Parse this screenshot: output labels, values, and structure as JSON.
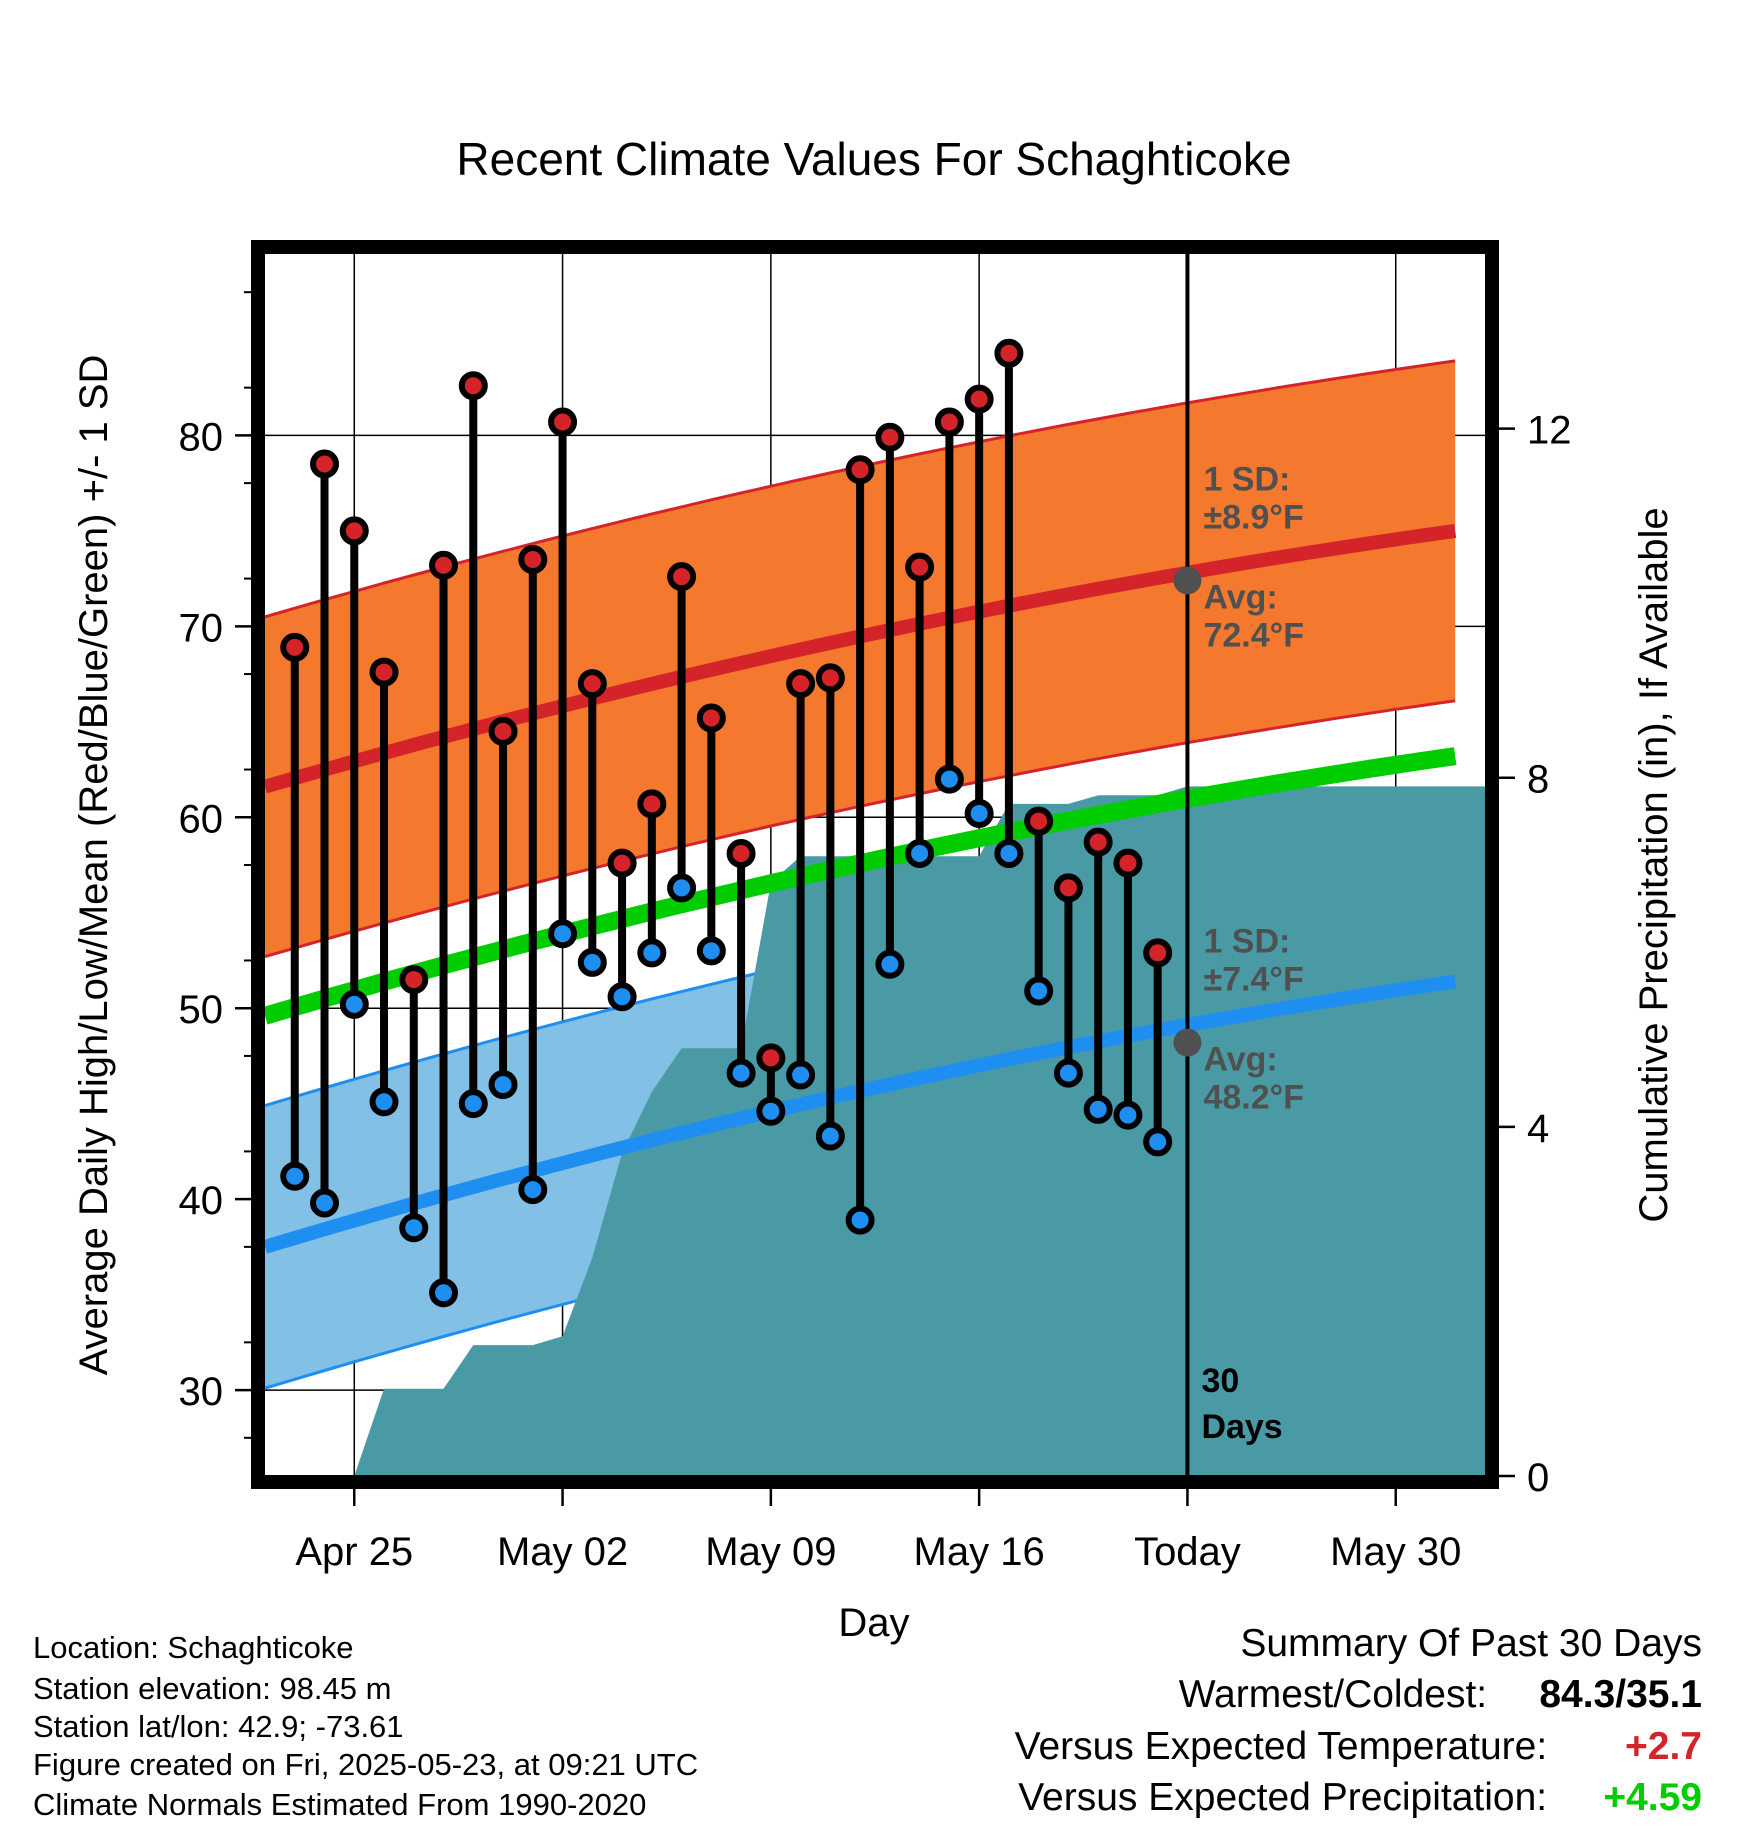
{
  "chart_data": {
    "type": "line",
    "title": "Recent Climate Values For Schaghticoke",
    "xlabel": "Day",
    "ylabel": "Average Daily High/Low/Mean (Red/Blue/Green) +/- 1 SD",
    "y2label": "Cumulative Precipitation (in), If Available",
    "x_start": "Apr 22",
    "x_end": "Jun 02",
    "xticks": [
      "Apr 25",
      "May 02",
      "May 09",
      "May 16",
      "Today",
      "May 30"
    ],
    "ylim": [
      25.5,
      89.5
    ],
    "yticks": [
      30,
      40,
      50,
      60,
      70,
      80
    ],
    "y2lim": [
      0,
      14.0
    ],
    "y2ticks": [
      0,
      4,
      8,
      12
    ],
    "grid": true,
    "today_marker": {
      "date": "May 23",
      "label_line1": "30",
      "label_line2": "Days"
    },
    "daily_temps": [
      {
        "date": "Apr 23",
        "high": 68.9,
        "low": 41.2
      },
      {
        "date": "Apr 24",
        "high": 78.5,
        "low": 39.8
      },
      {
        "date": "Apr 25",
        "high": 75.0,
        "low": 50.2
      },
      {
        "date": "Apr 26",
        "high": 67.6,
        "low": 45.1
      },
      {
        "date": "Apr 27",
        "high": 51.5,
        "low": 38.5
      },
      {
        "date": "Apr 28",
        "high": 73.2,
        "low": 35.1
      },
      {
        "date": "Apr 29",
        "high": 82.6,
        "low": 45.0
      },
      {
        "date": "Apr 30",
        "high": 64.5,
        "low": 46.0
      },
      {
        "date": "May 01",
        "high": 73.5,
        "low": 40.5
      },
      {
        "date": "May 02",
        "high": 80.7,
        "low": 53.9
      },
      {
        "date": "May 03",
        "high": 67.0,
        "low": 52.4
      },
      {
        "date": "May 04",
        "high": 57.6,
        "low": 50.6
      },
      {
        "date": "May 05",
        "high": 60.7,
        "low": 52.9
      },
      {
        "date": "May 06",
        "high": 72.6,
        "low": 56.3
      },
      {
        "date": "May 07",
        "high": 65.2,
        "low": 53.0
      },
      {
        "date": "May 08",
        "high": 58.1,
        "low": 46.6
      },
      {
        "date": "May 09",
        "high": 47.4,
        "low": 44.6
      },
      {
        "date": "May 10",
        "high": 67.0,
        "low": 46.5
      },
      {
        "date": "May 11",
        "high": 67.3,
        "low": 43.3
      },
      {
        "date": "May 12",
        "high": 78.2,
        "low": 38.9
      },
      {
        "date": "May 13",
        "high": 79.9,
        "low": 52.3
      },
      {
        "date": "May 14",
        "high": 73.1,
        "low": 58.1
      },
      {
        "date": "May 15",
        "high": 80.7,
        "low": 62.0
      },
      {
        "date": "May 16",
        "high": 81.9,
        "low": 60.2
      },
      {
        "date": "May 17",
        "high": 84.3,
        "low": 58.1
      },
      {
        "date": "May 18",
        "high": 59.8,
        "low": 50.9
      },
      {
        "date": "May 19",
        "high": 56.3,
        "low": 46.6
      },
      {
        "date": "May 20",
        "high": 58.7,
        "low": 44.7
      },
      {
        "date": "May 21",
        "high": 57.6,
        "low": 44.4
      },
      {
        "date": "May 22",
        "high": 52.9,
        "low": 43.0
      }
    ],
    "normal_high": {
      "start": 61.6,
      "end": 75.0,
      "sd": 8.9
    },
    "normal_low": {
      "start": 37.5,
      "end": 51.4,
      "sd": 7.4
    },
    "normal_mean": {
      "start": 49.6,
      "end": 63.2
    },
    "cumulative_precip": [
      {
        "date": "Apr 25",
        "value": 0.0
      },
      {
        "date": "Apr 26",
        "value": 1.0
      },
      {
        "date": "Apr 27",
        "value": 1.0
      },
      {
        "date": "Apr 28",
        "value": 1.0
      },
      {
        "date": "Apr 29",
        "value": 1.5
      },
      {
        "date": "Apr 30",
        "value": 1.5
      },
      {
        "date": "May 01",
        "value": 1.5
      },
      {
        "date": "May 02",
        "value": 1.6
      },
      {
        "date": "May 03",
        "value": 2.5
      },
      {
        "date": "May 04",
        "value": 3.7
      },
      {
        "date": "May 05",
        "value": 4.4
      },
      {
        "date": "May 06",
        "value": 4.9
      },
      {
        "date": "May 07",
        "value": 4.9
      },
      {
        "date": "May 08",
        "value": 4.9
      },
      {
        "date": "May 09",
        "value": 6.8
      },
      {
        "date": "May 10",
        "value": 7.1
      },
      {
        "date": "May 11",
        "value": 7.1
      },
      {
        "date": "May 12",
        "value": 7.1
      },
      {
        "date": "May 13",
        "value": 7.1
      },
      {
        "date": "May 14",
        "value": 7.1
      },
      {
        "date": "May 15",
        "value": 7.1
      },
      {
        "date": "May 16",
        "value": 7.1
      },
      {
        "date": "May 17",
        "value": 7.7
      },
      {
        "date": "May 18",
        "value": 7.7
      },
      {
        "date": "May 19",
        "value": 7.7
      },
      {
        "date": "May 20",
        "value": 7.8
      },
      {
        "date": "May 21",
        "value": 7.8
      },
      {
        "date": "May 22",
        "value": 7.8
      },
      {
        "date": "May 23",
        "value": 7.9
      },
      {
        "date": "Jun 01",
        "value": 7.9
      }
    ],
    "annotations": [
      {
        "id": "high",
        "line1": "1 SD:",
        "line2": "±8.9°F",
        "line3": "Avg:",
        "line4": "72.4°F",
        "avg_value": 72.4
      },
      {
        "id": "low",
        "line1": "1 SD:",
        "line2": "±7.4°F",
        "line3": "Avg:",
        "line4": "48.2°F",
        "avg_value": 48.2
      }
    ],
    "colors": {
      "high_band": "#f4782d",
      "high_line": "#d4242a",
      "low_band": "#82c0e6",
      "low_line": "#1e8ff0",
      "mean_line": "#00cc00",
      "precip": "#4a9aa5",
      "high_dot": "#d4242a",
      "low_dot": "#1e8ff0",
      "annotation": "#505050"
    }
  },
  "footer": {
    "location": "Location: Schaghticoke",
    "elevation": "Station elevation: 98.45 m",
    "latlon": "Station lat/lon: 42.9; -73.61",
    "created": "Figure created on Fri, 2025-05-23, at 09:21 UTC",
    "normals": "Climate Normals Estimated From 1990-2020"
  },
  "summary": {
    "title": "Summary Of Past 30 Days",
    "warmest_label": "Warmest/Coldest:",
    "warmest_value": "84.3/35.1",
    "temp_label": "Versus Expected Temperature:",
    "temp_value": "+2.7",
    "temp_color": "#d4242a",
    "precip_label": "Versus Expected Precipitation:",
    "precip_value": "+4.59",
    "precip_color": "#00cc00"
  }
}
